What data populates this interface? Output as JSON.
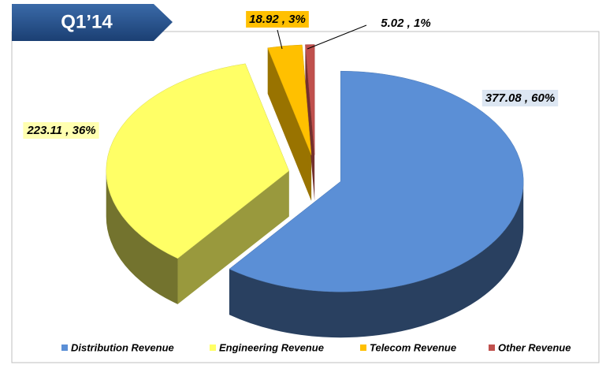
{
  "chart_data": {
    "type": "pie3d",
    "title": "Q1’14",
    "categories": [
      "Distribution Revenue",
      "Engineering Revenue",
      "Telecom Revenue",
      "Other Revenue"
    ],
    "values": [
      377.08,
      223.11,
      18.92,
      5.02
    ],
    "value_labels": [
      "377.08 , 60%",
      "223.11 , 36%",
      "18.92 , 3%",
      "5.02 , 1%"
    ],
    "colors": [
      "#5b8fd6",
      "#ffff66",
      "#ffc000",
      "#c0504d"
    ],
    "legend": "bottom"
  }
}
